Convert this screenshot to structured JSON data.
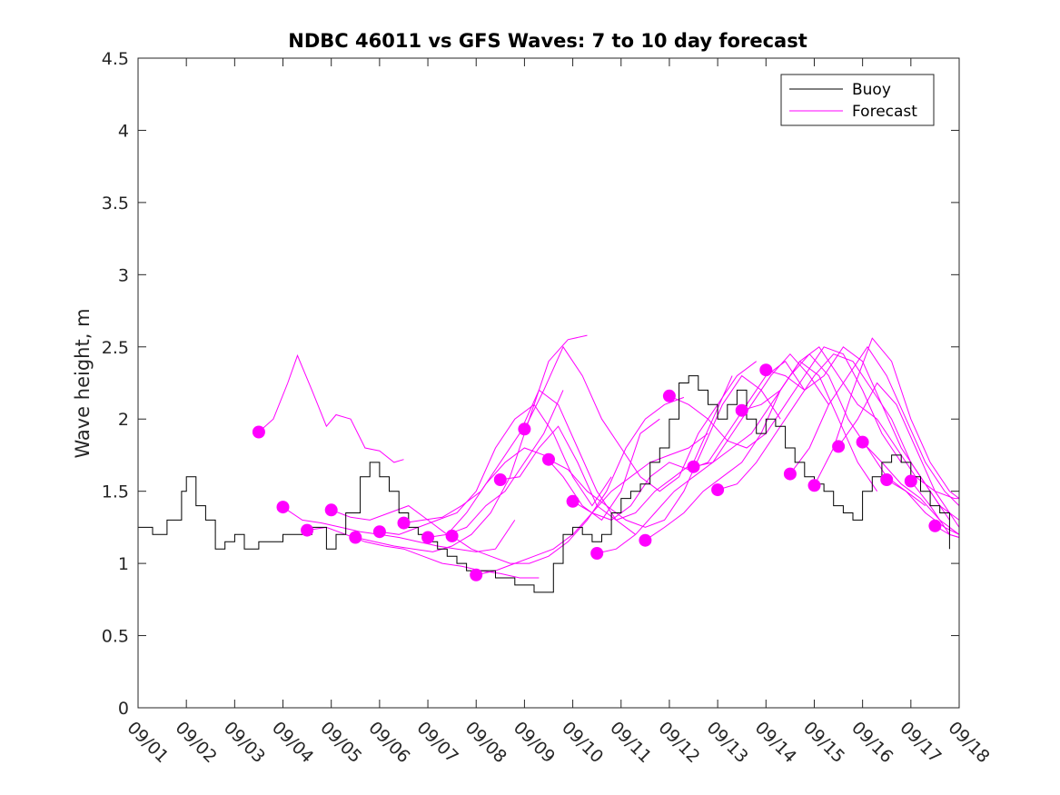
{
  "chart_data": {
    "type": "line",
    "title": "NDBC 46011 vs GFS Waves: 7 to 10 day forecast",
    "xlabel": "",
    "ylabel": "Wave height, m",
    "x_unit": "days since 09/01",
    "xlim": [
      0,
      17
    ],
    "ylim": [
      0,
      4.5
    ],
    "y_ticks": [
      0,
      0.5,
      1,
      1.5,
      2,
      2.5,
      3,
      3.5,
      4,
      4.5
    ],
    "y_tick_labels": [
      "0",
      "0.5",
      "1",
      "1.5",
      "2",
      "2.5",
      "3",
      "3.5",
      "4",
      "4.5"
    ],
    "x_ticks": [
      0,
      1,
      2,
      3,
      4,
      5,
      6,
      7,
      8,
      9,
      10,
      11,
      12,
      13,
      14,
      15,
      16,
      17
    ],
    "x_tick_labels": [
      "09/01",
      "09/02",
      "09/03",
      "09/04",
      "09/05",
      "09/06",
      "09/07",
      "09/08",
      "09/09",
      "09/10",
      "09/11",
      "09/12",
      "09/13",
      "09/14",
      "09/15",
      "09/16",
      "09/17",
      "09/18"
    ],
    "legend": {
      "position": "top-right",
      "entries": [
        {
          "label": "Buoy",
          "color": "#000000"
        },
        {
          "label": "Forecast",
          "color": "#ff00ff"
        }
      ]
    },
    "colors": {
      "buoy": "#000000",
      "forecast": "#ff00ff",
      "axes": "#262626"
    },
    "buoy": {
      "name": "Buoy",
      "x": [
        0,
        0.3,
        0.6,
        0.9,
        1.0,
        1.2,
        1.4,
        1.6,
        1.8,
        2.0,
        2.2,
        2.5,
        2.8,
        3.0,
        3.3,
        3.6,
        3.9,
        4.1,
        4.3,
        4.6,
        4.8,
        5.0,
        5.2,
        5.4,
        5.6,
        5.8,
        6.0,
        6.2,
        6.4,
        6.6,
        6.8,
        7.0,
        7.2,
        7.4,
        7.6,
        7.8,
        8.0,
        8.2,
        8.4,
        8.6,
        8.8,
        9.0,
        9.2,
        9.4,
        9.6,
        9.8,
        10.0,
        10.2,
        10.4,
        10.6,
        10.8,
        11.0,
        11.2,
        11.4,
        11.6,
        11.8,
        12.0,
        12.2,
        12.4,
        12.6,
        12.8,
        13.0,
        13.2,
        13.4,
        13.6,
        13.8,
        14.0,
        14.2,
        14.4,
        14.6,
        14.8,
        15.0,
        15.2,
        15.4,
        15.6,
        15.8,
        16.0,
        16.2,
        16.4,
        16.6,
        16.8
      ],
      "values": [
        1.25,
        1.2,
        1.3,
        1.5,
        1.6,
        1.4,
        1.3,
        1.1,
        1.15,
        1.2,
        1.1,
        1.15,
        1.15,
        1.2,
        1.2,
        1.25,
        1.1,
        1.2,
        1.35,
        1.6,
        1.7,
        1.6,
        1.5,
        1.35,
        1.25,
        1.2,
        1.15,
        1.1,
        1.05,
        1.0,
        0.95,
        0.95,
        0.95,
        0.9,
        0.9,
        0.85,
        0.85,
        0.8,
        0.8,
        1.0,
        1.2,
        1.25,
        1.2,
        1.15,
        1.2,
        1.35,
        1.45,
        1.5,
        1.55,
        1.7,
        1.8,
        2.0,
        2.25,
        2.3,
        2.2,
        2.1,
        2.0,
        2.1,
        2.2,
        2.0,
        1.9,
        2.0,
        1.95,
        1.8,
        1.7,
        1.6,
        1.55,
        1.5,
        1.4,
        1.35,
        1.3,
        1.5,
        1.6,
        1.7,
        1.75,
        1.7,
        1.6,
        1.5,
        1.4,
        1.35,
        1.1
      ]
    },
    "forecast_series": [
      {
        "name": "Forecast",
        "x": [
          2.5,
          2.8,
          3.1,
          3.3,
          3.6,
          3.9,
          4.1,
          4.4,
          4.7,
          5.0,
          5.3,
          5.5
        ],
        "values": [
          1.91,
          2.0,
          2.25,
          2.44,
          2.2,
          1.95,
          2.03,
          2.0,
          1.8,
          1.78,
          1.7,
          1.72
        ]
      },
      {
        "name": "Forecast",
        "x": [
          3.0,
          3.4,
          3.8,
          4.2,
          4.6,
          5.0,
          5.4,
          5.8,
          6.2,
          6.6,
          7.0,
          7.4,
          7.8
        ],
        "values": [
          1.39,
          1.3,
          1.28,
          1.25,
          1.22,
          1.2,
          1.18,
          1.15,
          1.12,
          1.1,
          1.08,
          1.1,
          1.3
        ]
      },
      {
        "name": "Forecast",
        "x": [
          3.5,
          3.9,
          4.3,
          4.7,
          5.1,
          5.5,
          5.9,
          6.3,
          6.7,
          7.1,
          7.5,
          7.9,
          8.3
        ],
        "values": [
          1.23,
          1.25,
          1.2,
          1.15,
          1.12,
          1.1,
          1.05,
          1.0,
          0.98,
          0.95,
          0.93,
          0.9,
          0.9
        ]
      },
      {
        "name": "Forecast",
        "x": [
          4.0,
          4.4,
          4.8,
          5.2,
          5.6,
          6.0,
          6.4,
          6.8,
          7.2,
          7.6,
          8.0,
          8.4,
          8.8
        ],
        "values": [
          1.37,
          1.32,
          1.3,
          1.35,
          1.4,
          1.3,
          1.2,
          1.25,
          1.4,
          1.5,
          1.7,
          1.9,
          2.2
        ]
      },
      {
        "name": "Forecast",
        "x": [
          4.5,
          4.9,
          5.3,
          5.7,
          6.1,
          6.5,
          6.9,
          7.3,
          7.7,
          8.1,
          8.5,
          8.9,
          9.3
        ],
        "values": [
          1.18,
          1.15,
          1.12,
          1.1,
          1.08,
          1.12,
          1.2,
          1.35,
          1.6,
          2.0,
          2.4,
          2.55,
          2.58
        ]
      },
      {
        "name": "Forecast",
        "x": [
          5.0,
          5.4,
          5.8,
          6.2,
          6.6,
          7.0,
          7.4,
          7.8,
          8.2,
          8.6,
          9.0,
          9.4,
          9.8
        ],
        "values": [
          1.22,
          1.2,
          1.25,
          1.3,
          1.35,
          1.5,
          1.8,
          2.0,
          2.1,
          1.9,
          1.6,
          1.4,
          1.6
        ]
      },
      {
        "name": "Forecast",
        "x": [
          5.5,
          5.9,
          6.3,
          6.7,
          7.1,
          7.5,
          7.9,
          8.3,
          8.7,
          9.1,
          9.5,
          9.9,
          10.3
        ],
        "values": [
          1.28,
          1.3,
          1.32,
          1.4,
          1.5,
          1.7,
          1.9,
          2.2,
          2.1,
          1.8,
          1.5,
          1.3,
          1.2
        ]
      },
      {
        "name": "Forecast",
        "x": [
          6.0,
          6.4,
          6.8,
          7.2,
          7.6,
          8.0,
          8.4,
          8.8,
          9.2,
          9.6,
          10.0,
          10.4,
          10.8
        ],
        "values": [
          1.18,
          1.2,
          1.35,
          1.55,
          1.7,
          1.8,
          1.75,
          1.6,
          1.4,
          1.3,
          1.5,
          1.9,
          2.0
        ]
      },
      {
        "name": "Forecast",
        "x": [
          6.5,
          6.9,
          7.3,
          7.7,
          8.1,
          8.5,
          8.9,
          9.3,
          9.7,
          10.1,
          10.5,
          10.9,
          11.3
        ],
        "values": [
          1.19,
          1.1,
          1.05,
          1.0,
          1.0,
          1.05,
          1.15,
          1.3,
          1.5,
          1.8,
          2.0,
          2.1,
          2.15
        ]
      },
      {
        "name": "Forecast",
        "x": [
          7.0,
          7.4,
          7.8,
          8.2,
          8.6,
          9.0,
          9.4,
          9.8,
          10.2,
          10.6,
          11.0,
          11.4,
          11.8
        ],
        "values": [
          0.92,
          0.95,
          1.0,
          1.05,
          1.1,
          1.2,
          1.35,
          1.5,
          1.6,
          1.7,
          1.75,
          1.8,
          1.9
        ]
      },
      {
        "name": "Forecast",
        "x": [
          7.5,
          7.9,
          8.3,
          8.7,
          9.1,
          9.5,
          9.9,
          10.3,
          10.7,
          11.1,
          11.5,
          11.9,
          12.3
        ],
        "values": [
          1.58,
          1.6,
          1.8,
          1.95,
          1.7,
          1.4,
          1.3,
          1.35,
          1.5,
          1.6,
          1.7,
          2.0,
          2.3
        ]
      },
      {
        "name": "Forecast",
        "x": [
          8.0,
          8.4,
          8.8,
          9.2,
          9.6,
          10.0,
          10.4,
          10.8,
          11.2,
          11.6,
          12.0,
          12.4,
          12.8
        ],
        "values": [
          1.93,
          2.2,
          2.5,
          2.3,
          2.0,
          1.8,
          1.6,
          1.5,
          1.6,
          1.9,
          2.1,
          2.3,
          2.4
        ]
      },
      {
        "name": "Forecast",
        "x": [
          8.5,
          8.9,
          9.3,
          9.7,
          10.1,
          10.5,
          10.9,
          11.3,
          11.7,
          12.1,
          12.5,
          12.9,
          13.3
        ],
        "values": [
          1.72,
          1.65,
          1.5,
          1.4,
          1.3,
          1.25,
          1.3,
          1.5,
          1.8,
          2.1,
          2.3,
          2.2,
          2.0
        ]
      },
      {
        "name": "Forecast",
        "x": [
          9.0,
          9.4,
          9.8,
          10.2,
          10.6,
          11.0,
          11.4,
          11.8,
          12.2,
          12.6,
          13.0,
          13.4,
          13.8
        ],
        "values": [
          1.43,
          1.35,
          1.3,
          1.4,
          1.6,
          1.7,
          1.65,
          1.7,
          1.9,
          2.1,
          2.3,
          2.4,
          2.2
        ]
      },
      {
        "name": "Forecast",
        "x": [
          9.5,
          9.9,
          10.3,
          10.7,
          11.1,
          11.5,
          11.9,
          12.3,
          12.7,
          13.1,
          13.5,
          13.9,
          14.3
        ],
        "values": [
          1.07,
          1.1,
          1.2,
          1.35,
          1.5,
          1.6,
          1.7,
          1.9,
          2.1,
          2.3,
          2.45,
          2.3,
          2.1
        ]
      },
      {
        "name": "Forecast",
        "x": [
          10.5,
          10.9,
          11.3,
          11.7,
          12.1,
          12.5,
          12.9,
          13.3,
          13.7,
          14.1,
          14.5,
          14.9,
          15.3
        ],
        "values": [
          1.16,
          1.25,
          1.35,
          1.5,
          1.6,
          1.7,
          1.9,
          2.2,
          2.4,
          2.3,
          2.0,
          1.7,
          1.5
        ]
      },
      {
        "name": "Forecast",
        "x": [
          11.0,
          11.4,
          11.8,
          12.2,
          12.6,
          13.0,
          13.4,
          13.8,
          14.2,
          14.6,
          15.0,
          15.4,
          15.8
        ],
        "values": [
          2.16,
          2.1,
          2.0,
          1.85,
          1.8,
          1.9,
          2.1,
          2.3,
          2.5,
          2.45,
          2.2,
          1.9,
          1.7
        ]
      },
      {
        "name": "Forecast",
        "x": [
          11.5,
          11.9,
          12.3,
          12.7,
          13.1,
          13.5,
          13.9,
          14.3,
          14.7,
          15.1,
          15.5,
          15.9,
          16.3
        ],
        "values": [
          1.67,
          1.7,
          1.8,
          1.9,
          2.1,
          2.3,
          2.45,
          2.3,
          2.0,
          1.8,
          1.6,
          1.5,
          1.4
        ]
      },
      {
        "name": "Forecast",
        "x": [
          12.0,
          12.4,
          12.8,
          13.2,
          13.6,
          14.0,
          14.4,
          14.8,
          15.2,
          15.6,
          16.0,
          16.4,
          16.8
        ],
        "values": [
          1.51,
          1.55,
          1.7,
          1.9,
          2.1,
          2.3,
          2.45,
          2.4,
          2.2,
          2.0,
          1.7,
          1.5,
          1.3
        ]
      },
      {
        "name": "Forecast",
        "x": [
          12.5,
          12.9,
          13.3,
          13.7,
          14.1,
          14.5,
          14.9,
          15.3,
          15.7,
          16.1,
          16.5,
          16.9,
          17.0
        ],
        "values": [
          2.06,
          2.1,
          2.2,
          2.4,
          2.5,
          2.3,
          2.1,
          2.0,
          1.8,
          1.6,
          1.5,
          1.45,
          1.45
        ]
      },
      {
        "name": "Forecast",
        "x": [
          13.0,
          13.4,
          13.8,
          14.2,
          14.6,
          15.0,
          15.4,
          15.8,
          16.2,
          16.6,
          17.0
        ],
        "values": [
          2.34,
          2.3,
          2.2,
          2.3,
          2.5,
          2.4,
          2.1,
          1.8,
          1.6,
          1.4,
          1.3
        ]
      },
      {
        "name": "Forecast",
        "x": [
          13.5,
          13.9,
          14.3,
          14.7,
          15.1,
          15.5,
          15.9,
          16.3,
          16.7,
          17.0
        ],
        "values": [
          1.62,
          1.8,
          2.1,
          2.3,
          2.5,
          2.3,
          2.0,
          1.7,
          1.5,
          1.4
        ]
      },
      {
        "name": "Forecast",
        "x": [
          14.0,
          14.4,
          14.8,
          15.2,
          15.6,
          16.0,
          16.4,
          16.8,
          17.0
        ],
        "values": [
          1.54,
          1.8,
          2.2,
          2.56,
          2.4,
          2.0,
          1.7,
          1.5,
          1.45
        ]
      },
      {
        "name": "Forecast",
        "x": [
          14.5,
          14.9,
          15.3,
          15.7,
          16.1,
          16.5,
          16.9,
          17.0
        ],
        "values": [
          1.81,
          2.0,
          2.25,
          2.1,
          1.8,
          1.5,
          1.3,
          1.25
        ]
      },
      {
        "name": "Forecast",
        "x": [
          15.0,
          15.4,
          15.8,
          16.2,
          16.6,
          17.0
        ],
        "values": [
          1.84,
          1.7,
          1.55,
          1.45,
          1.3,
          1.2
        ]
      },
      {
        "name": "Forecast",
        "x": [
          15.5,
          15.9,
          16.3,
          16.7,
          17.0
        ],
        "values": [
          1.58,
          1.5,
          1.35,
          1.25,
          1.2
        ]
      },
      {
        "name": "Forecast",
        "x": [
          16.0,
          16.4,
          16.8,
          17.0
        ],
        "values": [
          1.57,
          1.4,
          1.2,
          1.18
        ]
      },
      {
        "name": "Forecast",
        "x": [
          16.5,
          16.8,
          17.0
        ],
        "values": [
          1.26,
          1.2,
          1.18
        ]
      }
    ],
    "forecast_start_points": {
      "x": [
        2.5,
        3.0,
        3.5,
        4.0,
        4.5,
        5.0,
        5.5,
        6.0,
        6.5,
        7.0,
        7.5,
        8.0,
        8.5,
        9.0,
        9.5,
        10.5,
        11.0,
        11.5,
        12.0,
        12.5,
        13.0,
        13.5,
        14.0,
        14.5,
        15.0,
        15.5,
        16.0,
        16.5
      ],
      "values": [
        1.91,
        1.39,
        1.23,
        1.37,
        1.18,
        1.22,
        1.28,
        1.18,
        1.19,
        0.92,
        1.58,
        1.93,
        1.72,
        1.43,
        1.07,
        1.16,
        2.16,
        1.67,
        1.51,
        2.06,
        2.34,
        1.62,
        1.54,
        1.81,
        1.84,
        1.58,
        1.57,
        1.26
      ]
    }
  }
}
